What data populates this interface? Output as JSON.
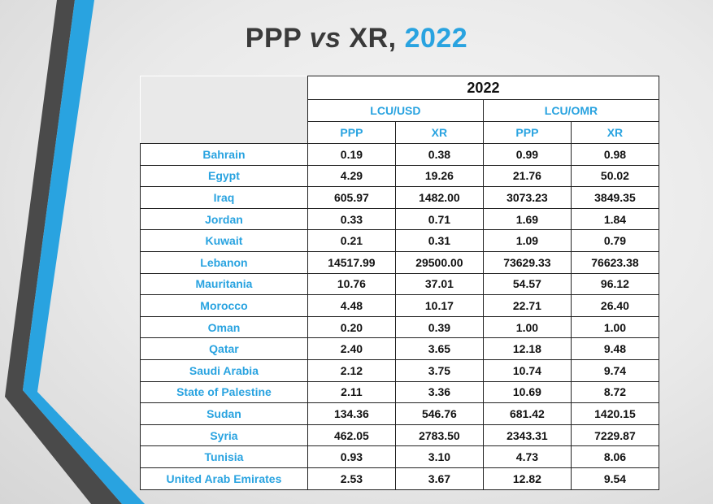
{
  "slide": {
    "title_prefix": "PPP ",
    "title_vs": "vs",
    "title_mid": " XR, ",
    "title_year": "2022",
    "accent_color": "#29a3e0"
  },
  "table": {
    "year": "2022",
    "groups": [
      "LCU/USD",
      "LCU/OMR"
    ],
    "subheaders": [
      "PPP",
      "XR",
      "PPP",
      "XR"
    ],
    "rows": [
      {
        "country": "Bahrain",
        "usd_ppp": "0.19",
        "usd_xr": "0.38",
        "omr_ppp": "0.99",
        "omr_xr": "0.98"
      },
      {
        "country": "Egypt",
        "usd_ppp": "4.29",
        "usd_xr": "19.26",
        "omr_ppp": "21.76",
        "omr_xr": "50.02"
      },
      {
        "country": "Iraq",
        "usd_ppp": "605.97",
        "usd_xr": "1482.00",
        "omr_ppp": "3073.23",
        "omr_xr": "3849.35"
      },
      {
        "country": "Jordan",
        "usd_ppp": "0.33",
        "usd_xr": "0.71",
        "omr_ppp": "1.69",
        "omr_xr": "1.84"
      },
      {
        "country": "Kuwait",
        "usd_ppp": "0.21",
        "usd_xr": "0.31",
        "omr_ppp": "1.09",
        "omr_xr": "0.79"
      },
      {
        "country": "Lebanon",
        "usd_ppp": "14517.99",
        "usd_xr": "29500.00",
        "omr_ppp": "73629.33",
        "omr_xr": "76623.38"
      },
      {
        "country": "Mauritania",
        "usd_ppp": "10.76",
        "usd_xr": "37.01",
        "omr_ppp": "54.57",
        "omr_xr": "96.12"
      },
      {
        "country": "Morocco",
        "usd_ppp": "4.48",
        "usd_xr": "10.17",
        "omr_ppp": "22.71",
        "omr_xr": "26.40"
      },
      {
        "country": "Oman",
        "usd_ppp": "0.20",
        "usd_xr": "0.39",
        "omr_ppp": "1.00",
        "omr_xr": "1.00"
      },
      {
        "country": "Qatar",
        "usd_ppp": "2.40",
        "usd_xr": "3.65",
        "omr_ppp": "12.18",
        "omr_xr": "9.48"
      },
      {
        "country": "Saudi Arabia",
        "usd_ppp": "2.12",
        "usd_xr": "3.75",
        "omr_ppp": "10.74",
        "omr_xr": "9.74"
      },
      {
        "country": "State of Palestine",
        "usd_ppp": "2.11",
        "usd_xr": "3.36",
        "omr_ppp": "10.69",
        "omr_xr": "8.72"
      },
      {
        "country": "Sudan",
        "usd_ppp": "134.36",
        "usd_xr": "546.76",
        "omr_ppp": "681.42",
        "omr_xr": "1420.15"
      },
      {
        "country": "Syria",
        "usd_ppp": "462.05",
        "usd_xr": "2783.50",
        "omr_ppp": "2343.31",
        "omr_xr": "7229.87"
      },
      {
        "country": "Tunisia",
        "usd_ppp": "0.93",
        "usd_xr": "3.10",
        "omr_ppp": "4.73",
        "omr_xr": "8.06"
      },
      {
        "country": "United Arab Emirates",
        "usd_ppp": "2.53",
        "usd_xr": "3.67",
        "omr_ppp": "12.82",
        "omr_xr": "9.54"
      }
    ]
  }
}
